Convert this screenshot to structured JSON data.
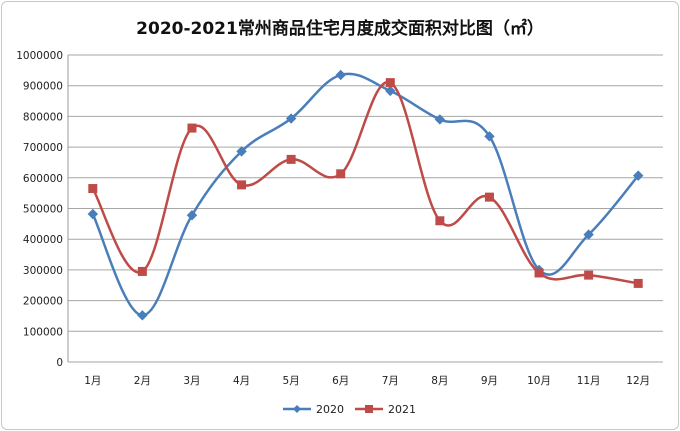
{
  "chart_data": {
    "type": "line",
    "title": "2020-2021常州商品住宅月度成交面积对比图（㎡）",
    "xlabel": "",
    "ylabel": "",
    "categories": [
      "1月",
      "2月",
      "3月",
      "4月",
      "5月",
      "6月",
      "7月",
      "8月",
      "9月",
      "10月",
      "11月",
      "12月"
    ],
    "ylim": [
      0,
      1000000
    ],
    "yticks": [
      "0",
      "100000",
      "200000",
      "300000",
      "400000",
      "500000",
      "600000",
      "700000",
      "800000",
      "900000",
      "1000000"
    ],
    "grid": true,
    "legend": "bottom",
    "series": [
      {
        "name": "2020",
        "color": "#4a7ebb",
        "marker": "diamond",
        "values": [
          482000,
          152000,
          478000,
          686000,
          793000,
          935000,
          883000,
          790000,
          735000,
          300000,
          415000,
          607000
        ]
      },
      {
        "name": "2021",
        "color": "#be4b48",
        "marker": "square",
        "values": [
          565000,
          295000,
          762000,
          577000,
          660000,
          613000,
          910000,
          460000,
          537000,
          290000,
          283000,
          256000
        ]
      }
    ]
  }
}
